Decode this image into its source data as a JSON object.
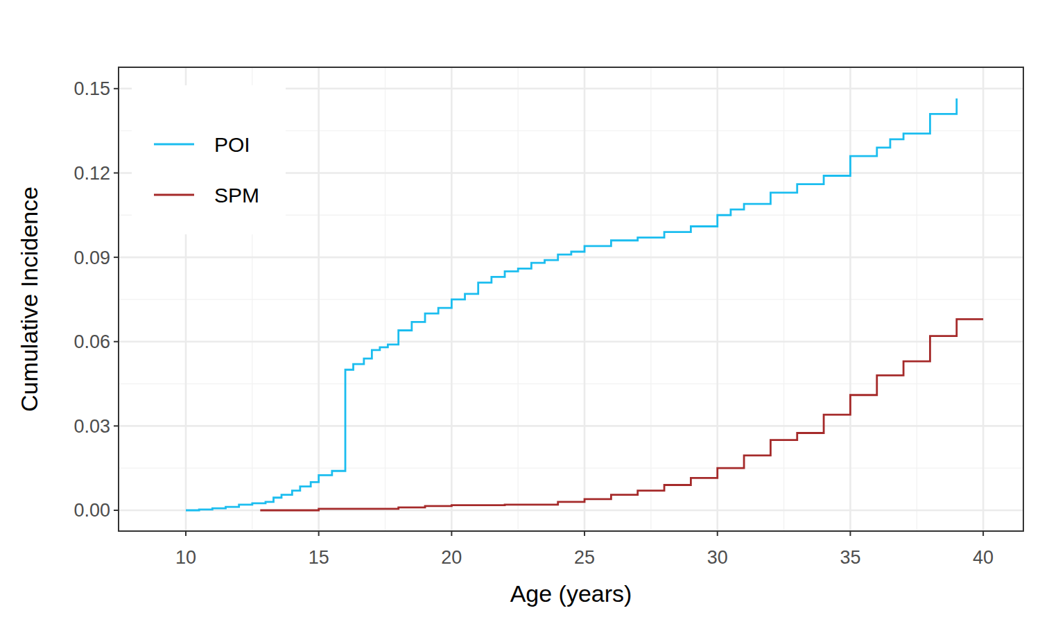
{
  "chart_data": {
    "type": "line",
    "x_label": "Age (years)",
    "y_label": "Cumulative Incidence",
    "xlim": [
      7.47,
      41.51
    ],
    "ylim": [
      -0.0074,
      0.1576
    ],
    "xticks": [
      10,
      15,
      20,
      25,
      30,
      35,
      40
    ],
    "yticks": [
      {
        "value": 0,
        "label": "0.00"
      },
      {
        "value": 0.03,
        "label": "0.03"
      },
      {
        "value": 0.06,
        "label": "0.06"
      },
      {
        "value": 0.09,
        "label": "0.09"
      },
      {
        "value": 0.12,
        "label": "0.12"
      },
      {
        "value": 0.15,
        "label": "0.15"
      }
    ],
    "grid": true,
    "legend": "top-left",
    "line_style": "step",
    "series": [
      {
        "name": "POI",
        "color": "#1BBDEF",
        "x": [
          10.0,
          10.5,
          11.0,
          11.5,
          12.0,
          12.5,
          13.0,
          13.3,
          13.6,
          14.0,
          14.3,
          14.7,
          15.0,
          15.5,
          16.0,
          16.3,
          16.7,
          17.0,
          17.3,
          17.6,
          18.0,
          18.5,
          19.0,
          19.5,
          20.0,
          20.5,
          21.0,
          21.5,
          22.0,
          22.5,
          23.0,
          23.5,
          24.0,
          24.5,
          25.0,
          26.0,
          27.0,
          28.0,
          29.0,
          30.0,
          30.5,
          31.0,
          32.0,
          33.0,
          34.0,
          35.0,
          36.0,
          36.5,
          37.0,
          38.0,
          39.0
        ],
        "values": [
          0.0,
          0.0003,
          0.0007,
          0.0012,
          0.002,
          0.0025,
          0.003,
          0.0045,
          0.0055,
          0.007,
          0.0085,
          0.01,
          0.0125,
          0.014,
          0.05,
          0.052,
          0.054,
          0.057,
          0.058,
          0.059,
          0.064,
          0.067,
          0.07,
          0.072,
          0.075,
          0.077,
          0.081,
          0.083,
          0.085,
          0.086,
          0.088,
          0.089,
          0.091,
          0.092,
          0.094,
          0.096,
          0.097,
          0.099,
          0.101,
          0.105,
          0.107,
          0.109,
          0.113,
          0.116,
          0.119,
          0.126,
          0.129,
          0.132,
          0.134,
          0.141,
          0.1465
        ]
      },
      {
        "name": "SPM",
        "color": "#A52A2A",
        "x": [
          12.8,
          15.0,
          18.0,
          19.0,
          20.0,
          22.0,
          24.0,
          25.0,
          26.0,
          27.0,
          28.0,
          29.0,
          30.0,
          31.0,
          32.0,
          33.0,
          34.0,
          35.0,
          36.0,
          37.0,
          38.0,
          39.0,
          40.0
        ],
        "values": [
          0.0,
          0.0005,
          0.001,
          0.0015,
          0.0018,
          0.002,
          0.003,
          0.004,
          0.0055,
          0.007,
          0.009,
          0.0115,
          0.015,
          0.0195,
          0.025,
          0.0275,
          0.034,
          0.041,
          0.048,
          0.053,
          0.062,
          0.068,
          0.068
        ]
      }
    ]
  }
}
